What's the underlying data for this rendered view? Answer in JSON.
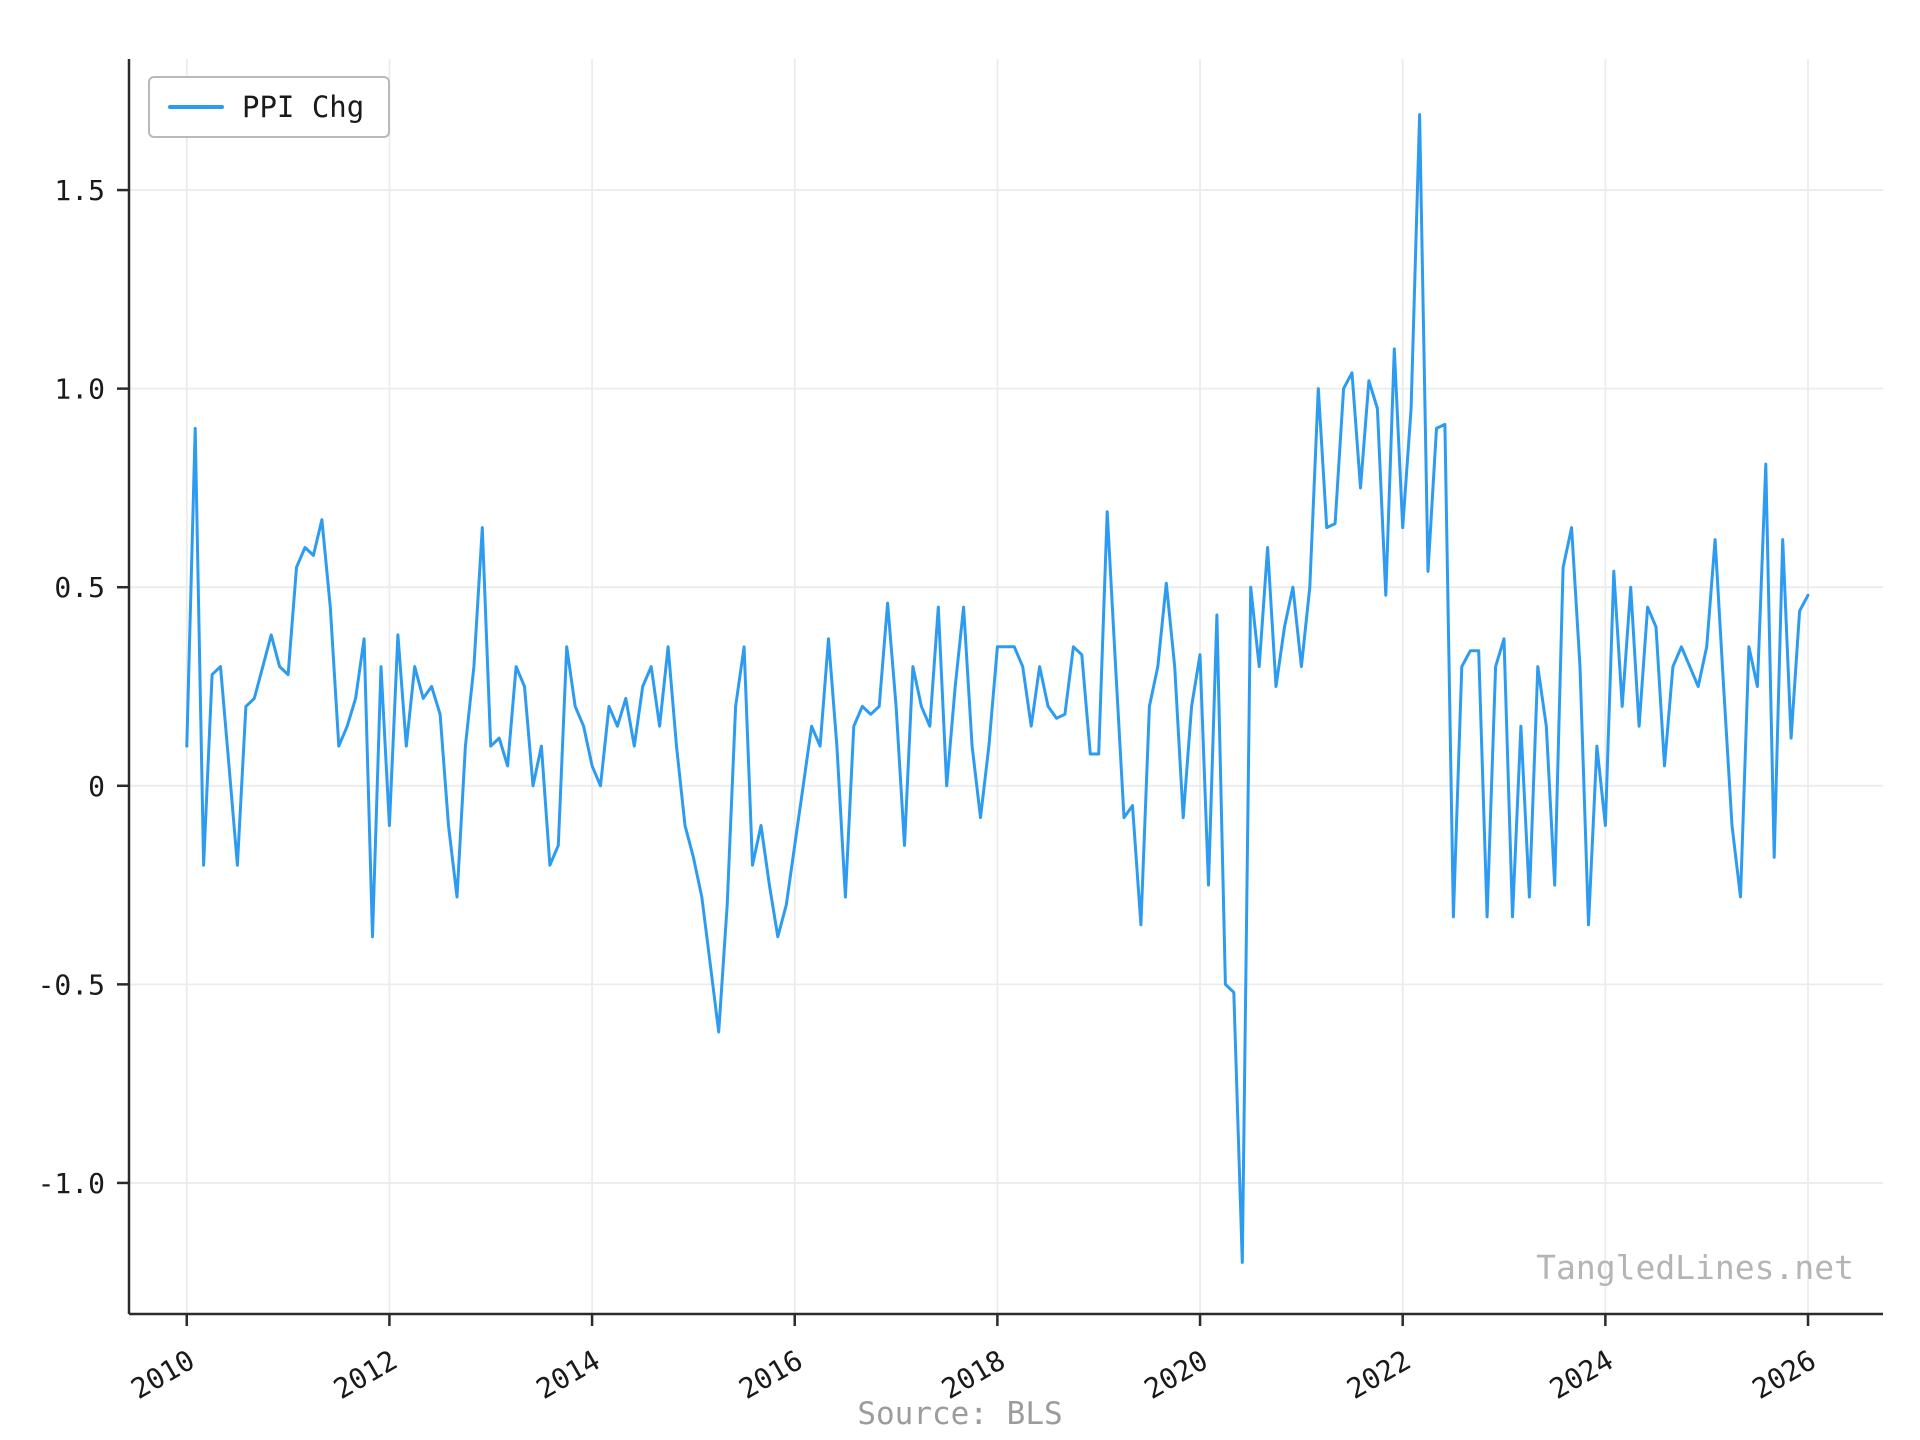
{
  "legend": {
    "label": "PPI Chg"
  },
  "source": "Source: BLS",
  "watermark": "TangledLines.net",
  "colors": {
    "line": "#2d9cf0",
    "grid": "#ececec",
    "axis": "#2b2b2b",
    "text": "#1a1a1a",
    "muted": "#9c9c9c",
    "watermark": "#b5b5b5",
    "background": "#ffffff"
  },
  "chart_data": {
    "type": "line",
    "title": "",
    "xlabel": "Source: BLS",
    "ylabel": "",
    "grid": true,
    "legend_position": "upper-left",
    "xlim": [
      2009.43,
      2026.74
    ],
    "ylim": [
      -1.33,
      1.83
    ],
    "x_ticks": [
      2010,
      2012,
      2014,
      2016,
      2018,
      2020,
      2022,
      2024,
      2026
    ],
    "x_tick_labels": [
      "2010",
      "2012",
      "2014",
      "2016",
      "2018",
      "2020",
      "2022",
      "2024",
      "2026"
    ],
    "y_ticks": [
      -1.0,
      -0.5,
      0,
      0.5,
      1.0,
      1.5
    ],
    "y_tick_labels": [
      "-1.0",
      "-0.5",
      "0",
      "0.5",
      "1.0",
      "1.5"
    ],
    "series": [
      {
        "name": "PPI Chg",
        "color": "#2d9cf0",
        "x_start": 2010.0,
        "freq": "monthly",
        "values": [
          0.1,
          0.9,
          -0.2,
          0.28,
          0.3,
          0.05,
          -0.2,
          0.2,
          0.22,
          0.3,
          0.38,
          0.3,
          0.28,
          0.55,
          0.6,
          0.58,
          0.67,
          0.45,
          0.1,
          0.15,
          0.22,
          0.37,
          -0.38,
          0.3,
          -0.1,
          0.38,
          0.1,
          0.3,
          0.22,
          0.25,
          0.18,
          -0.1,
          -0.28,
          0.1,
          0.3,
          0.65,
          0.1,
          0.12,
          0.05,
          0.3,
          0.25,
          0.0,
          0.1,
          -0.2,
          -0.15,
          0.35,
          0.2,
          0.15,
          0.05,
          0.0,
          0.2,
          0.15,
          0.22,
          0.1,
          0.25,
          0.3,
          0.15,
          0.35,
          0.1,
          -0.1,
          -0.18,
          -0.28,
          -0.45,
          -0.62,
          -0.3,
          0.2,
          0.35,
          -0.2,
          -0.1,
          -0.25,
          -0.38,
          -0.3,
          -0.15,
          0.0,
          0.15,
          0.1,
          0.37,
          0.1,
          -0.28,
          0.15,
          0.2,
          0.18,
          0.2,
          0.46,
          0.2,
          -0.15,
          0.3,
          0.2,
          0.15,
          0.45,
          0.0,
          0.25,
          0.45,
          0.1,
          -0.08,
          0.1,
          0.35,
          0.35,
          0.35,
          0.3,
          0.15,
          0.3,
          0.2,
          0.17,
          0.18,
          0.35,
          0.33,
          0.08,
          0.08,
          0.69,
          0.3,
          -0.08,
          -0.05,
          -0.35,
          0.2,
          0.3,
          0.51,
          0.3,
          -0.08,
          0.2,
          0.33,
          -0.25,
          0.43,
          -0.5,
          -0.52,
          -1.2,
          0.5,
          0.3,
          0.6,
          0.25,
          0.4,
          0.5,
          0.3,
          0.5,
          1.0,
          0.65,
          0.66,
          1.0,
          1.04,
          0.75,
          1.02,
          0.95,
          0.48,
          1.1,
          0.65,
          0.95,
          1.69,
          0.54,
          0.9,
          0.91,
          -0.33,
          0.3,
          0.34,
          0.34,
          -0.33,
          0.3,
          0.37,
          -0.33,
          0.15,
          -0.28,
          0.3,
          0.15,
          -0.25,
          0.55,
          0.65,
          0.3,
          -0.35,
          0.1,
          -0.1,
          0.54,
          0.2,
          0.5,
          0.15,
          0.45,
          0.4,
          0.05,
          0.3,
          0.35,
          0.3,
          0.25,
          0.35,
          0.62,
          0.25,
          -0.1,
          -0.28,
          0.35,
          0.25,
          0.81,
          -0.18,
          0.62,
          0.12,
          0.44,
          0.48
        ]
      }
    ]
  }
}
